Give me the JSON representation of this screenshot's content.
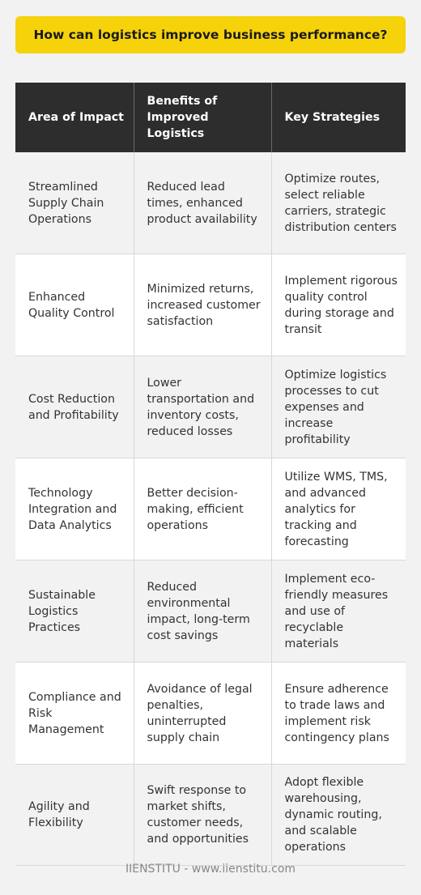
{
  "title": "How can logistics improve business performance?",
  "table": {
    "headers": [
      "Area of Impact",
      "Benefits of Improved Logistics",
      "Key Strategies"
    ],
    "rows": [
      [
        "Streamlined Supply Chain Operations",
        "Reduced lead times, enhanced product availability",
        "Optimize routes, select reliable carriers, strategic distribution centers"
      ],
      [
        "Enhanced Quality Control",
        "Minimized returns, increased customer satisfaction",
        "Implement rigorous quality control during storage and transit"
      ],
      [
        "Cost Reduction and Profitability",
        "Lower transportation and inventory costs, reduced losses",
        "Optimize logistics processes to cut expenses and increase profitability"
      ],
      [
        "Technology Integration and Data Analytics",
        "Better decision-making, efficient operations",
        "Utilize WMS, TMS, and advanced analytics for tracking and forecasting"
      ],
      [
        "Sustainable Logistics Practices",
        "Reduced environmental impact, long-term cost savings",
        "Implement eco-friendly measures and use of recyclable materials"
      ],
      [
        "Compliance and Risk Management",
        "Avoidance of legal penalties, uninterrupted supply chain",
        "Ensure adherence to trade laws and implement risk contingency plans"
      ],
      [
        "Agility and Flexibility",
        "Swift response to market shifts, customer needs, and opportunities",
        "Adopt flexible warehousing, dynamic routing, and scalable operations"
      ]
    ]
  },
  "footer": "IIENSTITU - www.iienstitu.com",
  "colors": {
    "banner": "#f5d20a",
    "header_bg": "#2d2d2d",
    "row_alt": "#f2f2f2",
    "row_plain": "#ffffff"
  }
}
